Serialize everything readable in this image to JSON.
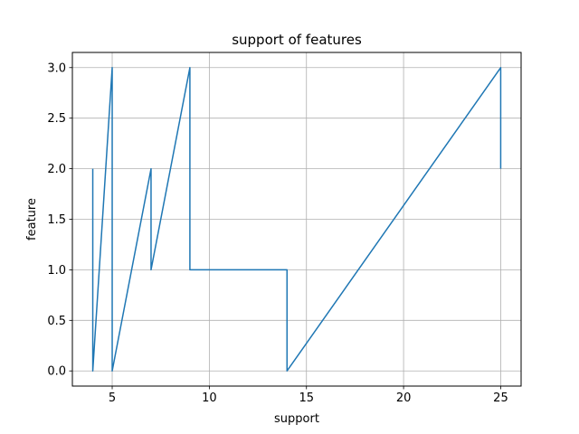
{
  "chart_data": {
    "type": "line",
    "title": "support of features",
    "xlabel": "support",
    "ylabel": "feature",
    "xlim": [
      2.95,
      26.05
    ],
    "ylim": [
      -0.15,
      3.15
    ],
    "xticks": [
      5,
      10,
      15,
      20,
      25
    ],
    "xtick_labels": [
      "5",
      "10",
      "15",
      "20",
      "25"
    ],
    "yticks": [
      0,
      0.5,
      1,
      1.5,
      2,
      2.5,
      3
    ],
    "ytick_labels": [
      "0.0",
      "0.5",
      "1.0",
      "1.5",
      "2.0",
      "2.5",
      "3.0"
    ],
    "grid": true,
    "series": [
      {
        "color": "#1f77b4",
        "x": [
          4,
          4,
          5,
          5,
          7,
          7,
          9,
          9,
          14,
          14,
          25,
          25
        ],
        "y": [
          2,
          0,
          3,
          0,
          2,
          1,
          3,
          1,
          1,
          0,
          3,
          2
        ]
      }
    ]
  }
}
